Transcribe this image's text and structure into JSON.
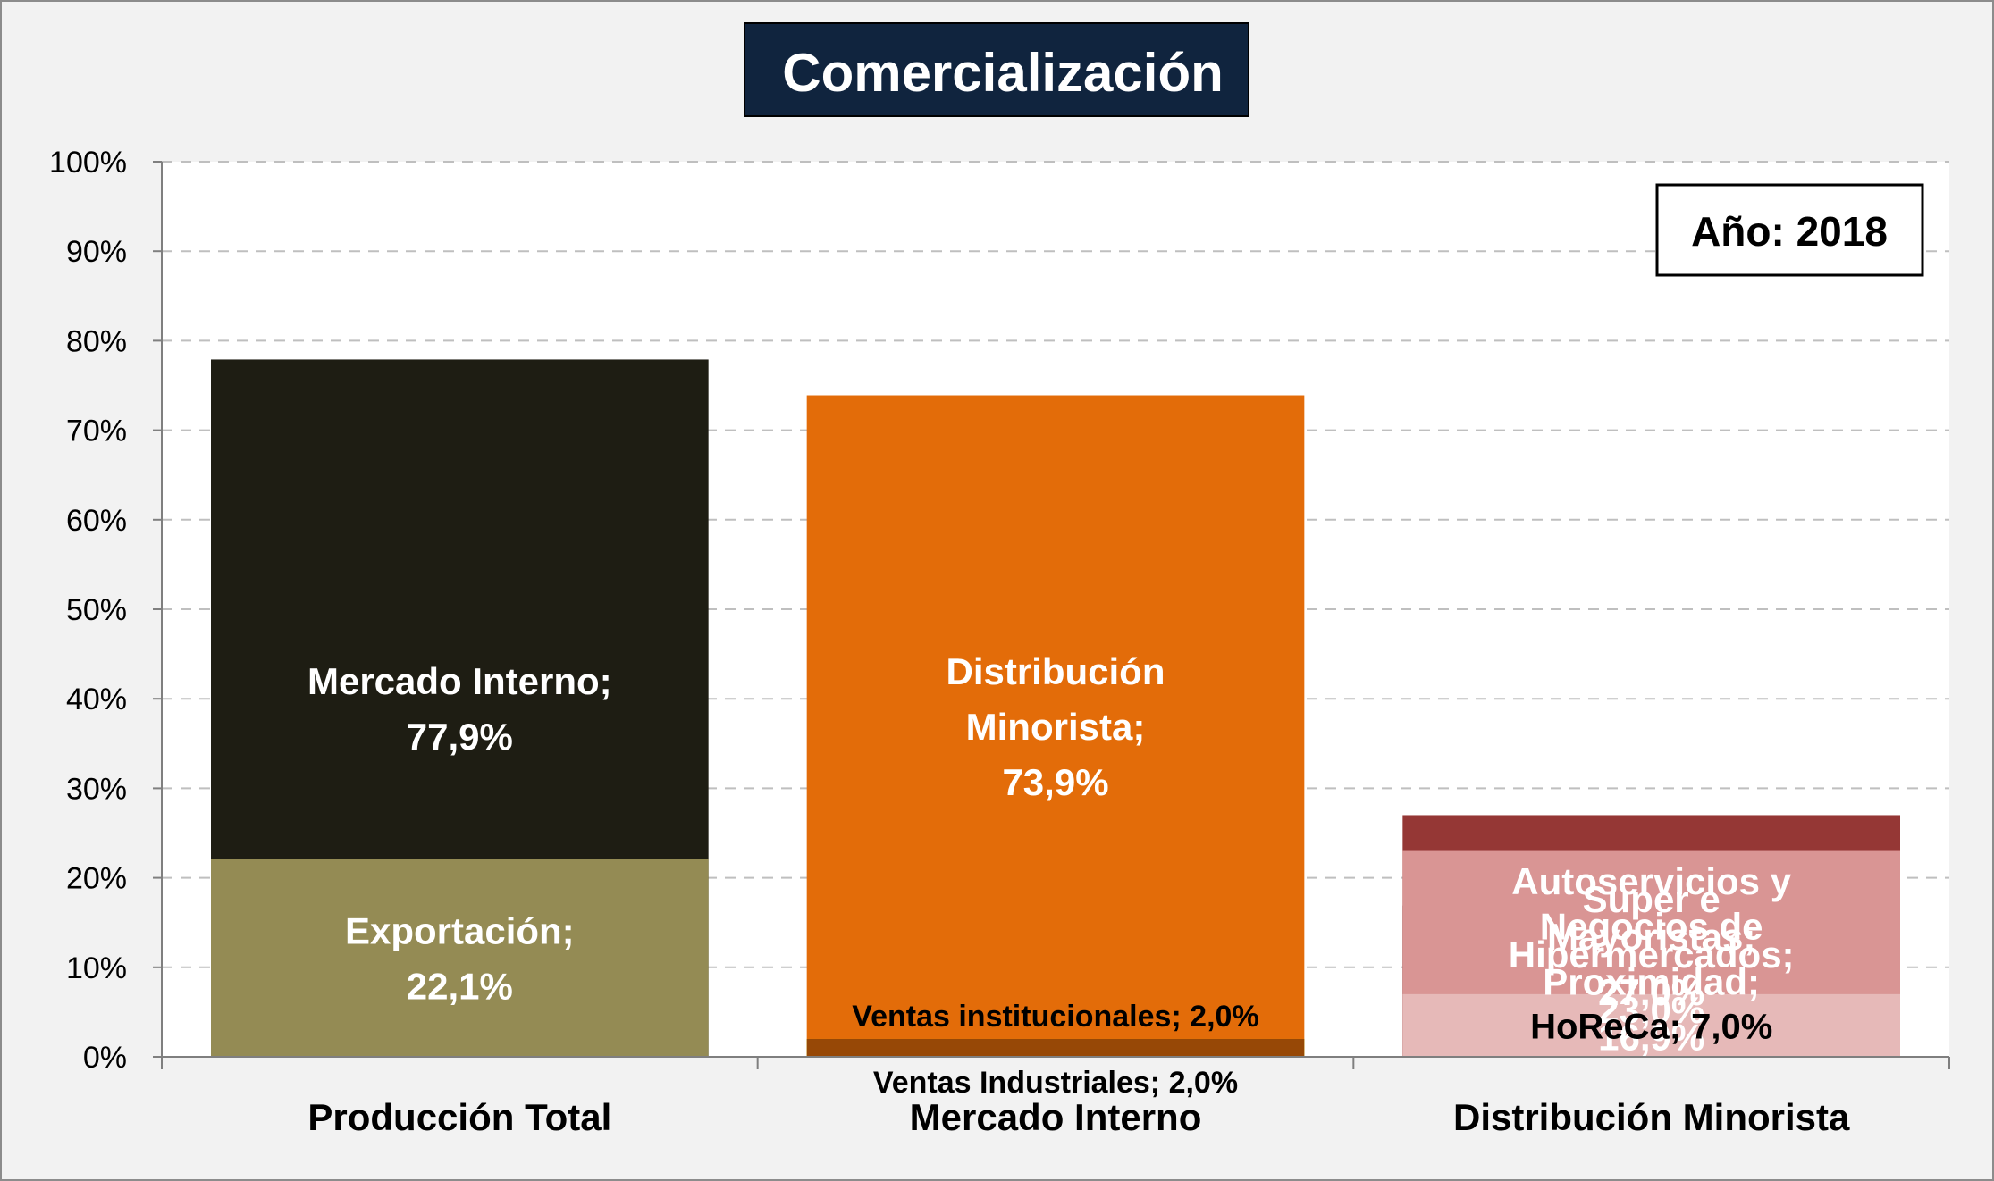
{
  "colors": {
    "background": "#f2f2f2",
    "plot_background": "#ffffff",
    "title_box": "#10243e",
    "gridline": "#bfbfbf",
    "axis_text": "#000000"
  },
  "chart_data": {
    "type": "bar",
    "stacked": true,
    "title": "Comercialización",
    "annotation": "Año: 2018",
    "categories": [
      "Producción Total",
      "Mercado Interno",
      "Distribución Minorista"
    ],
    "ylim": [
      0,
      100
    ],
    "ytick_labels": [
      "0%",
      "10%",
      "20%",
      "30%",
      "40%",
      "50%",
      "60%",
      "70%",
      "80%",
      "90%",
      "100%"
    ],
    "grid": true,
    "legend": "none",
    "stacks": [
      {
        "category": "Producción Total",
        "segments": [
          {
            "name": "Mercado Interno",
            "value": 77.9,
            "label_lines": [
              "Mercado Interno;",
              "77,9%"
            ],
            "color": "#1e1d13",
            "text_color": "#ffffff",
            "label_pos": "inside"
          },
          {
            "name": "Exportación",
            "value": 22.1,
            "label_lines": [
              "Exportación;",
              "22,1%"
            ],
            "color": "#948b54",
            "text_color": "#ffffff",
            "label_pos": "inside"
          }
        ]
      },
      {
        "category": "Mercado Interno",
        "segments": [
          {
            "name": "Distribución Minorista",
            "value": 73.9,
            "label_lines": [
              "Distribución",
              "Minorista;",
              "73,9%"
            ],
            "color": "#e36c09",
            "text_color": "#ffffff",
            "label_pos": "inside"
          },
          {
            "name": "Ventas Industriales",
            "value": 2.0,
            "label_lines": [
              "Ventas Industriales; 2,0%"
            ],
            "color": "#ffff00",
            "text_color": "#000000",
            "label_pos": "below"
          },
          {
            "name": "Ventas institucionales",
            "value": 2.0,
            "label_lines": [
              "Ventas institucionales; 2,0%"
            ],
            "color": "#974806",
            "text_color": "#000000",
            "label_pos": "above"
          }
        ]
      },
      {
        "category": "Distribución Minorista",
        "segments": [
          {
            "name": "Negocios de Proximidad",
            "value": 16.9,
            "label_lines": [
              "Negocios de",
              "Proximidad;",
              "16,9%"
            ],
            "color": "#632523",
            "text_color": "#ffffff",
            "label_pos": "inside"
          },
          {
            "name": "Autoservicios y Mayoristas",
            "value": 27.0,
            "label_lines": [
              "Autoservicios y",
              "Mayoristas;",
              "27,0%"
            ],
            "color": "#953735",
            "text_color": "#ffffff",
            "label_pos": "inside"
          },
          {
            "name": "Super e Hipermercados",
            "value": 23.0,
            "label_lines": [
              "Super e",
              "Hipermercados;",
              "23,0%"
            ],
            "color": "#d99594",
            "text_color": "#ffffff",
            "label_pos": "inside"
          },
          {
            "name": "HoReCa",
            "value": 7.0,
            "label_lines": [
              "HoReCa; 7,0%"
            ],
            "color": "#e6b9b8",
            "text_color": "#000000",
            "label_pos": "inside"
          }
        ]
      }
    ]
  }
}
